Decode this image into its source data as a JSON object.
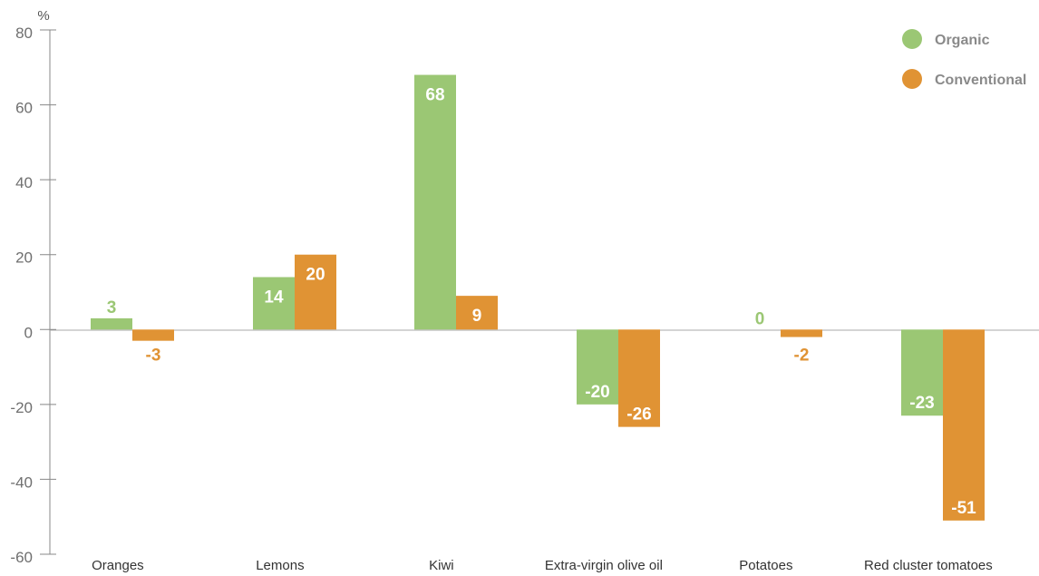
{
  "chart_data": {
    "type": "bar",
    "ylabel": "%",
    "ylim": [
      -60,
      80
    ],
    "yticks": [
      80,
      60,
      40,
      20,
      0,
      -20,
      -40,
      -60
    ],
    "grid": false,
    "legend_position": "top-right",
    "categories": [
      "Oranges",
      "Lemons",
      "Kiwi",
      "Extra-virgin olive oil",
      "Potatoes",
      "Red cluster tomatoes"
    ],
    "series": [
      {
        "name": "Organic",
        "color": "#9bc774",
        "values": [
          3,
          14,
          68,
          -20,
          0,
          -23
        ]
      },
      {
        "name": "Conventional",
        "color": "#e09334",
        "values": [
          -3,
          20,
          9,
          -26,
          -2,
          -51
        ]
      }
    ]
  }
}
